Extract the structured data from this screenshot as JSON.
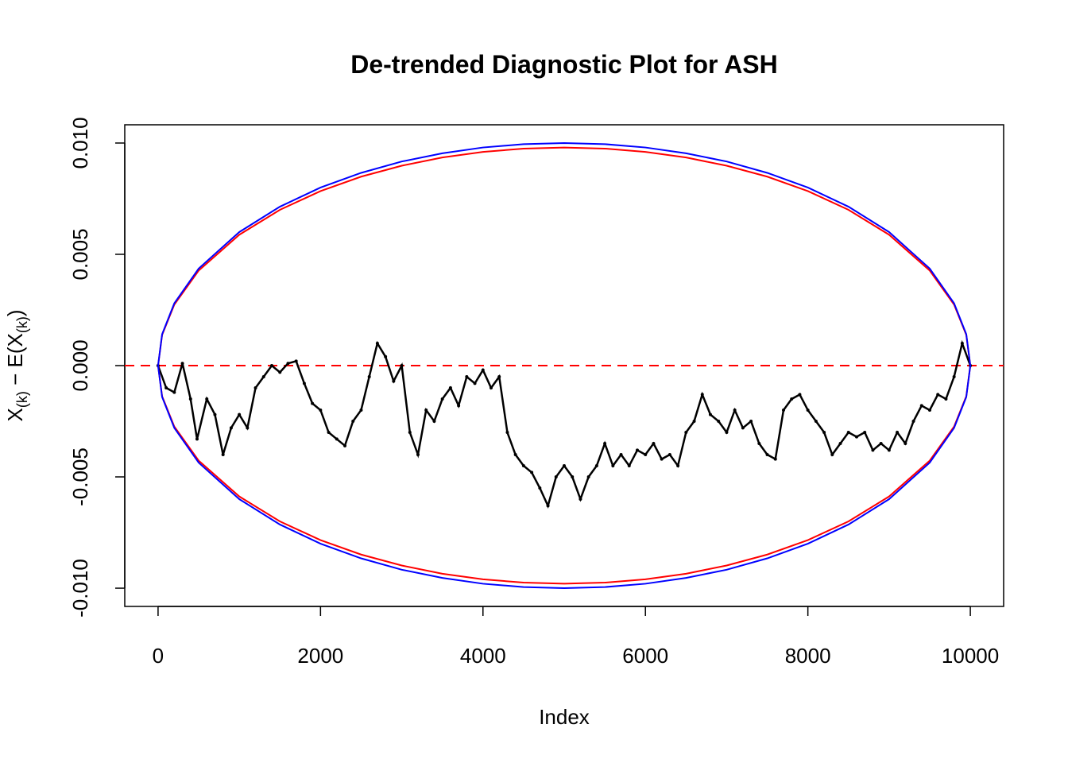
{
  "chart_data": {
    "type": "scatter",
    "title": "De-trended Diagnostic Plot for ASH",
    "xlabel": "Index",
    "ylabel": [
      "X",
      "(k)",
      " − E(X",
      "(k)",
      ")"
    ],
    "xlim": [
      -410,
      10410
    ],
    "ylim": [
      -0.01082,
      0.01082
    ],
    "xticks": [
      0,
      2000,
      4000,
      6000,
      8000,
      10000
    ],
    "yticks": [
      {
        "value": -0.01,
        "label": "-0.010"
      },
      {
        "value": -0.005,
        "label": "-0.005"
      },
      {
        "value": 0,
        "label": "0.000"
      },
      {
        "value": 0.005,
        "label": "0.005"
      },
      {
        "value": 0.01,
        "label": "0.010"
      }
    ],
    "hlines": [
      {
        "value": 0,
        "color": "#ff0000",
        "dash": true
      }
    ],
    "series": [
      {
        "mode": "points",
        "color": "#000000",
        "x": [
          0,
          100,
          200,
          300,
          400,
          480,
          600,
          700,
          800,
          900,
          1000,
          1100,
          1200,
          1300,
          1400,
          1500,
          1600,
          1700,
          1800,
          1900,
          2000,
          2100,
          2200,
          2300,
          2400,
          2500,
          2600,
          2700,
          2800,
          2900,
          3000,
          3100,
          3200,
          3300,
          3400,
          3500,
          3600,
          3700,
          3800,
          3900,
          4000,
          4100,
          4200,
          4300,
          4400,
          4500,
          4600,
          4700,
          4800,
          4900,
          5000,
          5100,
          5200,
          5300,
          5400,
          5500,
          5600,
          5700,
          5800,
          5900,
          6000,
          6100,
          6200,
          6300,
          6400,
          6500,
          6600,
          6700,
          6800,
          6900,
          7000,
          7100,
          7200,
          7300,
          7400,
          7500,
          7600,
          7700,
          7800,
          7900,
          8000,
          8100,
          8200,
          8300,
          8400,
          8500,
          8600,
          8700,
          8800,
          8900,
          9000,
          9100,
          9200,
          9300,
          9400,
          9500,
          9600,
          9700,
          9800,
          9900,
          10000
        ],
        "values": [
          0,
          -0.001,
          -0.0012,
          0.0001,
          -0.0015,
          -0.0033,
          -0.0015,
          -0.0022,
          -0.004,
          -0.0028,
          -0.0022,
          -0.0028,
          -0.001,
          -0.0005,
          0,
          -0.0003,
          0.0001,
          0.0002,
          -0.0008,
          -0.0017,
          -0.002,
          -0.003,
          -0.0033,
          -0.0036,
          -0.0025,
          -0.002,
          -0.0005,
          0.001,
          0.0004,
          -0.0007,
          0,
          -0.003,
          -0.004,
          -0.002,
          -0.0025,
          -0.0015,
          -0.001,
          -0.0018,
          -0.0005,
          -0.0008,
          -0.0002,
          -0.001,
          -0.0005,
          -0.003,
          -0.004,
          -0.0045,
          -0.0048,
          -0.0055,
          -0.0063,
          -0.005,
          -0.0045,
          -0.005,
          -0.006,
          -0.005,
          -0.0045,
          -0.0035,
          -0.0045,
          -0.004,
          -0.0045,
          -0.0038,
          -0.004,
          -0.0035,
          -0.0042,
          -0.004,
          -0.0045,
          -0.003,
          -0.0025,
          -0.0013,
          -0.0022,
          -0.0025,
          -0.003,
          -0.002,
          -0.0028,
          -0.0025,
          -0.0035,
          -0.004,
          -0.0042,
          -0.002,
          -0.0015,
          -0.0013,
          -0.002,
          -0.0025,
          -0.003,
          -0.004,
          -0.0035,
          -0.003,
          -0.0032,
          -0.003,
          -0.0038,
          -0.0035,
          -0.0038,
          -0.003,
          -0.0035,
          -0.0025,
          -0.0018,
          -0.002,
          -0.0013,
          -0.0015,
          -0.0005,
          0.001,
          0
        ]
      },
      {
        "mode": "line",
        "color": "#ff0000",
        "x": [
          0,
          50,
          200,
          500,
          1000,
          1500,
          2000,
          2500,
          3000,
          3500,
          4000,
          4500,
          5000,
          5500,
          6000,
          6500,
          7000,
          7500,
          8000,
          8500,
          9000,
          9500,
          9800,
          9950,
          10000
        ],
        "values": [
          0,
          0.00138,
          0.00274,
          0.00427,
          0.00588,
          0.007,
          0.00784,
          0.00849,
          0.00898,
          0.00935,
          0.0096,
          0.00975,
          0.0098,
          0.00975,
          0.0096,
          0.00935,
          0.00898,
          0.00849,
          0.00784,
          0.007,
          0.00588,
          0.00427,
          0.00274,
          0.00138,
          0
        ]
      },
      {
        "mode": "line",
        "color": "#ff0000",
        "x": [
          0,
          50,
          200,
          500,
          1000,
          1500,
          2000,
          2500,
          3000,
          3500,
          4000,
          4500,
          5000,
          5500,
          6000,
          6500,
          7000,
          7500,
          8000,
          8500,
          9000,
          9500,
          9800,
          9950,
          10000
        ],
        "values": [
          0,
          -0.00138,
          -0.00274,
          -0.00427,
          -0.00588,
          -0.007,
          -0.00784,
          -0.00849,
          -0.00898,
          -0.00935,
          -0.0096,
          -0.00975,
          -0.0098,
          -0.00975,
          -0.0096,
          -0.00935,
          -0.00898,
          -0.00849,
          -0.00784,
          -0.007,
          -0.00588,
          -0.00427,
          -0.00274,
          -0.00138,
          0
        ]
      },
      {
        "mode": "line",
        "color": "#0000ff",
        "x": [
          0,
          50,
          200,
          500,
          1000,
          1500,
          2000,
          2500,
          3000,
          3500,
          4000,
          4500,
          5000,
          5500,
          6000,
          6500,
          7000,
          7500,
          8000,
          8500,
          9000,
          9500,
          9800,
          9950,
          10000
        ],
        "values": [
          0,
          0.00141,
          0.0028,
          0.00436,
          0.006,
          0.00714,
          0.008,
          0.00866,
          0.00917,
          0.00954,
          0.0098,
          0.00995,
          0.01,
          0.00995,
          0.0098,
          0.00954,
          0.00917,
          0.00866,
          0.008,
          0.00714,
          0.006,
          0.00436,
          0.0028,
          0.00141,
          0
        ]
      },
      {
        "mode": "line",
        "color": "#0000ff",
        "x": [
          0,
          50,
          200,
          500,
          1000,
          1500,
          2000,
          2500,
          3000,
          3500,
          4000,
          4500,
          5000,
          5500,
          6000,
          6500,
          7000,
          7500,
          8000,
          8500,
          9000,
          9500,
          9800,
          9950,
          10000
        ],
        "values": [
          0,
          -0.00141,
          -0.0028,
          -0.00436,
          -0.006,
          -0.00714,
          -0.008,
          -0.00866,
          -0.00917,
          -0.00954,
          -0.0098,
          -0.00995,
          -0.01,
          -0.00995,
          -0.0098,
          -0.00954,
          -0.00917,
          -0.00866,
          -0.008,
          -0.00714,
          -0.006,
          -0.00436,
          -0.0028,
          -0.00141,
          0
        ]
      }
    ]
  }
}
